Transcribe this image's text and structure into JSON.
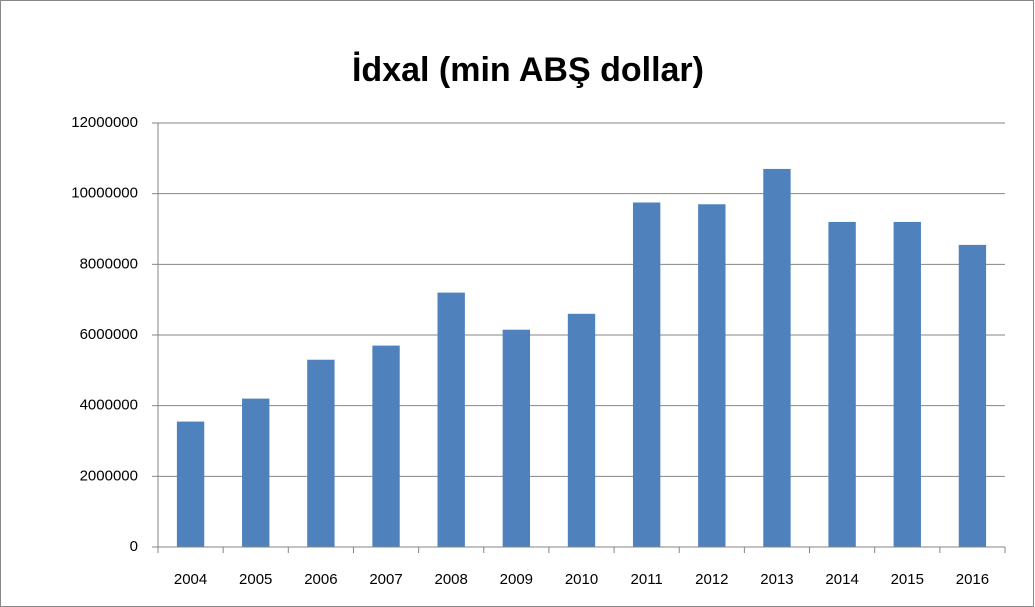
{
  "chart_data": {
    "type": "bar",
    "title": "İdxal (min ABŞ dollar)",
    "categories": [
      "2004",
      "2005",
      "2006",
      "2007",
      "2008",
      "2009",
      "2010",
      "2011",
      "2012",
      "2013",
      "2014",
      "2015",
      "2016"
    ],
    "values": [
      3550000,
      4200000,
      5300000,
      5700000,
      7200000,
      6150000,
      6600000,
      9750000,
      9700000,
      10700000,
      9200000,
      9200000,
      8550000
    ],
    "color": "#4f81bd",
    "ylim": [
      0,
      12000000
    ],
    "yticks": [
      0,
      2000000,
      4000000,
      6000000,
      8000000,
      10000000,
      12000000
    ],
    "grid": true
  }
}
